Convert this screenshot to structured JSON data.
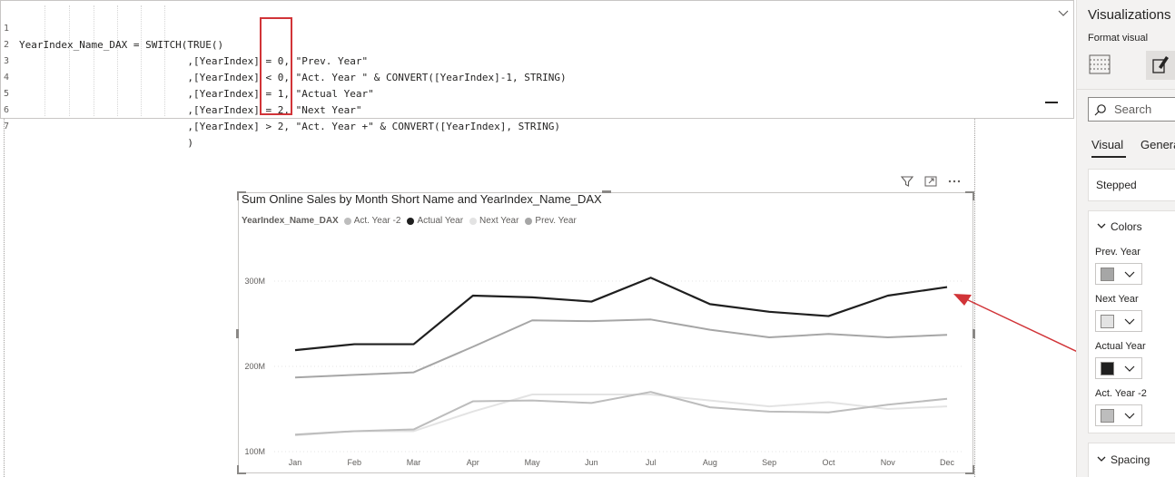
{
  "editor": {
    "lines": [
      {
        "n": "1",
        "text": "YearIndex_Name_DAX = SWITCH(TRUE()"
      },
      {
        "n": "2",
        "text": "                            ,[YearIndex] = 0, \"Prev. Year\""
      },
      {
        "n": "3",
        "text": "                            ,[YearIndex] < 0, \"Act. Year \" & CONVERT([YearIndex]-1, STRING)"
      },
      {
        "n": "4",
        "text": "                            ,[YearIndex] = 1, \"Actual Year\""
      },
      {
        "n": "5",
        "text": "                            ,[YearIndex] = 2, \"Next Year\""
      },
      {
        "n": "6",
        "text": "                            ,[YearIndex] > 2, \"Act. Year +\" & CONVERT([YearIndex], STRING)"
      },
      {
        "n": "7",
        "text": "                            )"
      }
    ]
  },
  "visual": {
    "title": "Sum Online Sales by Month Short Name and YearIndex_Name_DAX",
    "legend_title": "YearIndex_Name_DAX",
    "icons": [
      "filter-icon",
      "focus-mode-icon",
      "more-options-icon"
    ]
  },
  "chart_data": {
    "type": "line",
    "title": "Sum Online Sales by Month Short Name and YearIndex_Name_DAX",
    "categories": [
      "Jan",
      "Feb",
      "Mar",
      "Apr",
      "May",
      "Jun",
      "Jul",
      "Aug",
      "Sep",
      "Oct",
      "Nov",
      "Dec"
    ],
    "y_ticks": [
      "100M",
      "200M",
      "300M"
    ],
    "ylim": [
      100,
      310
    ],
    "grid": true,
    "legend_position": "top-left",
    "series": [
      {
        "name": "Act. Year -2",
        "color": "#bdbdbd",
        "values": [
          120,
          124,
          126,
          159,
          160,
          157,
          170,
          152,
          147,
          146,
          155,
          162
        ]
      },
      {
        "name": "Actual Year",
        "color": "#1f1f1f",
        "values": [
          219,
          226,
          226,
          283,
          281,
          276,
          304,
          273,
          264,
          259,
          283,
          293
        ]
      },
      {
        "name": "Next Year",
        "color": "#e3e3e3",
        "values": [
          119,
          124,
          124,
          147,
          167,
          167,
          167,
          160,
          153,
          158,
          150,
          153
        ]
      },
      {
        "name": "Prev. Year",
        "color": "#a6a6a6",
        "values": [
          187,
          190,
          193,
          223,
          254,
          253,
          255,
          243,
          234,
          238,
          234,
          237
        ]
      }
    ]
  },
  "pane": {
    "title": "Visualizations",
    "subtitle": "Format visual",
    "search_placeholder": "Search",
    "tab_visual": "Visual",
    "tab_general": "General",
    "stepped_label": "Stepped",
    "colors_header": "Colors",
    "spacing_header": "Spacing",
    "colors": [
      {
        "label": "Prev. Year",
        "swatch": "#a6a6a6"
      },
      {
        "label": "Next Year",
        "swatch": "#e3e3e3"
      },
      {
        "label": "Actual Year",
        "swatch": "#1f1f1f"
      },
      {
        "label": "Act. Year -2",
        "swatch": "#bdbdbd"
      }
    ]
  },
  "annotation": {
    "arrow_color": "#d13438",
    "highlight_color": "#d13438"
  }
}
